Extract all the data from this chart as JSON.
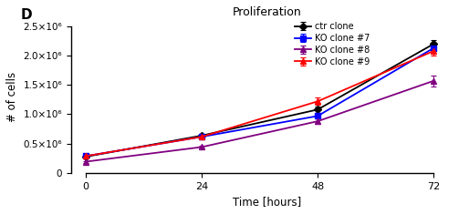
{
  "title": "Proliferation",
  "xlabel": "Time [hours]",
  "ylabel": "# of cells",
  "x_values": [
    0,
    24,
    48,
    72
  ],
  "series": [
    {
      "name": "ctr clone",
      "y": [
        275000.0,
        635000.0,
        1080000.0,
        2200000.0
      ],
      "yerr": [
        18000.0,
        35000.0,
        55000.0,
        60000.0
      ],
      "color": "#000000",
      "marker": "D",
      "markersize": 4.5
    },
    {
      "name": "KO clone #7",
      "y": [
        285000.0,
        615000.0,
        970000.0,
        2130000.0
      ],
      "yerr": [
        18000.0,
        35000.0,
        45000.0,
        55000.0
      ],
      "color": "#0000ff",
      "marker": "s",
      "markersize": 4.5
    },
    {
      "name": "KO clone #8",
      "y": [
        190000.0,
        440000.0,
        880000.0,
        1570000.0
      ],
      "yerr": [
        15000.0,
        25000.0,
        50000.0,
        90000.0
      ],
      "color": "#800080",
      "marker": "^",
      "markersize": 5
    },
    {
      "name": "KO clone #9",
      "y": [
        285000.0,
        615000.0,
        1220000.0,
        2080000.0
      ],
      "yerr": [
        18000.0,
        30000.0,
        65000.0,
        75000.0
      ],
      "color": "#ff0000",
      "marker": "^",
      "markersize": 5
    }
  ],
  "ylim": [
    0,
    2600000.0
  ],
  "yticks": [
    0,
    500000.0,
    1000000.0,
    1500000.0,
    2000000.0,
    2500000.0
  ],
  "ytick_labels": [
    "0",
    "0.5×10⁶",
    "1.0×10⁶",
    "1.5×10⁶",
    "2.0×10⁶",
    "2.5×10⁶"
  ],
  "xticks": [
    0,
    24,
    48,
    72
  ],
  "panel_label": "D",
  "bg_color": "#ffffff",
  "figure_width": 5.14,
  "figure_height": 2.35,
  "legend_entries": [
    "ctr clone",
    "KO clone #7",
    "KO clone #8",
    "KO clone #9"
  ],
  "legend_colors": [
    "#000000",
    "#0000ff",
    "#800080",
    "#ff0000"
  ]
}
